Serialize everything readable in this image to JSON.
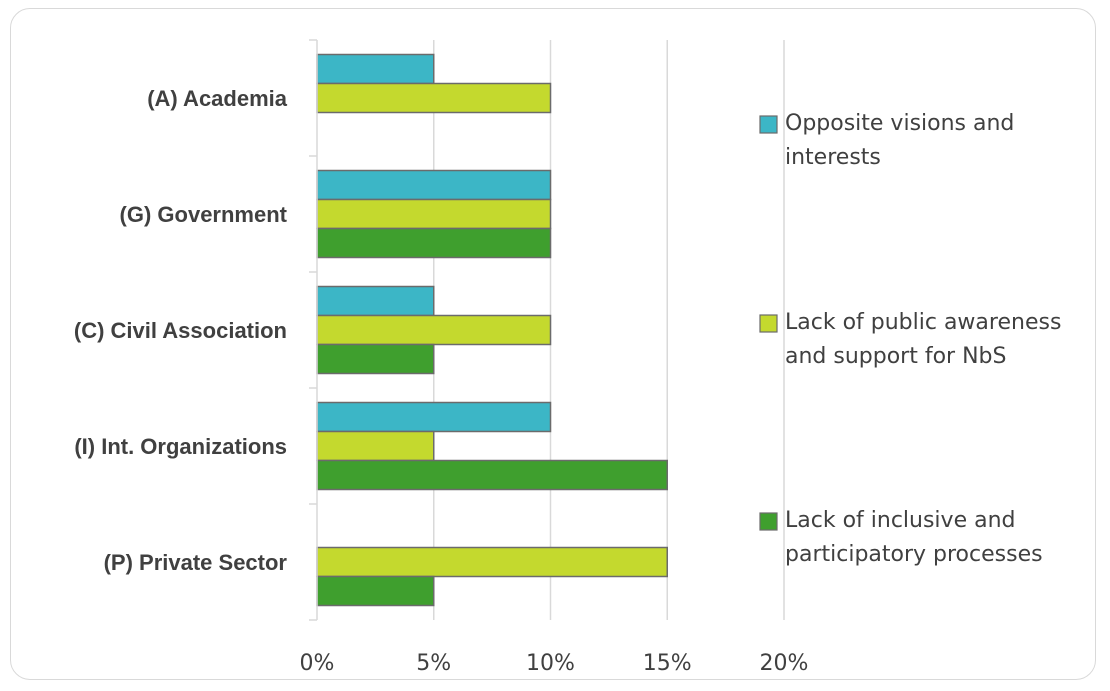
{
  "chart_data": {
    "type": "bar",
    "orientation": "horizontal",
    "categories": [
      "(A) Academia",
      "(G) Government",
      "(C) Civil Association",
      "(I) Int. Organizations",
      "(P) Private Sector"
    ],
    "series": [
      {
        "name": "Opposite visions and interests",
        "values": [
          5,
          10,
          5,
          10,
          0
        ],
        "color": "#3cb6c6",
        "legend_lines": [
          "Opposite visions and",
          "interests"
        ]
      },
      {
        "name": "Lack of public awareness and support for NbS",
        "values": [
          10,
          10,
          10,
          5,
          15
        ],
        "color": "#c4d92e",
        "legend_lines": [
          "Lack of public awareness",
          "and support for NbS"
        ]
      },
      {
        "name": "Lack of inclusive and participatory processes",
        "values": [
          0,
          10,
          5,
          15,
          5
        ],
        "color": "#3f9f2e",
        "legend_lines": [
          "Lack of inclusive and",
          "participatory  processes"
        ]
      }
    ],
    "xlim": [
      0,
      20
    ],
    "x_ticks": [
      "0%",
      "5%",
      "10%",
      "15%",
      "20%"
    ],
    "grid": "vertical",
    "legend_position": "right",
    "title": "",
    "xlabel": "",
    "ylabel": ""
  }
}
